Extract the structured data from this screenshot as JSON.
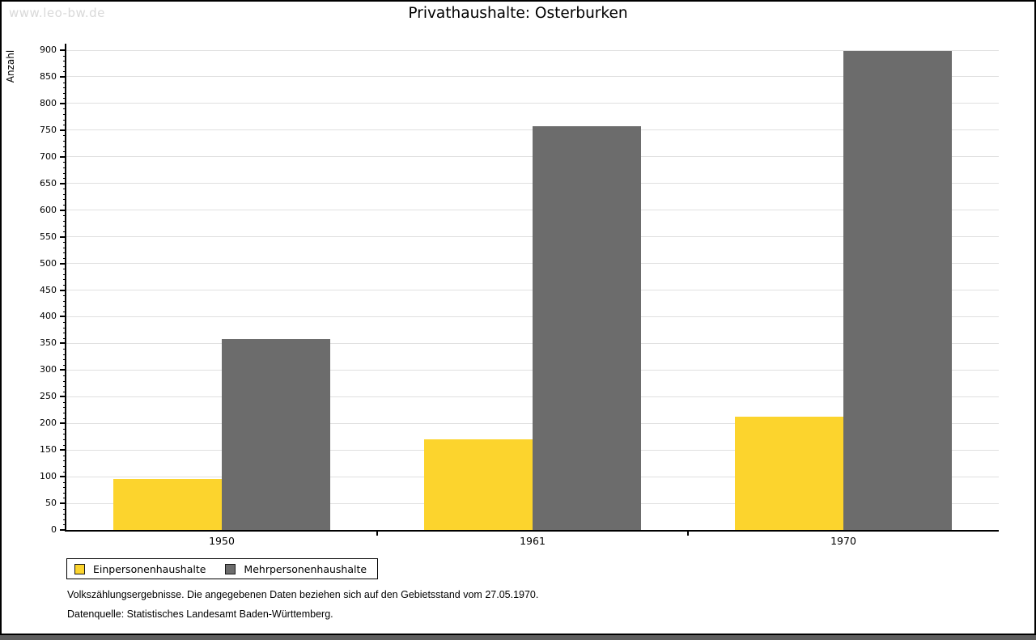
{
  "watermark": "www.leo-bw.de",
  "chart_data": {
    "type": "bar",
    "title": "Privathaushalte: Osterburken",
    "categories": [
      "1950",
      "1961",
      "1970"
    ],
    "series": [
      {
        "name": "Einpersonenhaushalte",
        "color": "#fcd42d",
        "values": [
          96,
          170,
          212
        ]
      },
      {
        "name": "Mehrpersonenhaushalte",
        "color": "#6c6c6c",
        "values": [
          358,
          757,
          898
        ]
      }
    ],
    "xlabel": "",
    "ylabel": "Anzahl",
    "ylim": [
      0,
      900
    ],
    "ytick_step": 50,
    "ytick_minor_step": 10,
    "grid": true,
    "legend_position": "bottom-left"
  },
  "footer": {
    "line1": "Volkszählungsergebnisse. Die angegebenen Daten beziehen sich auf den Gebietsstand vom 27.05.1970.",
    "line2": "Datenquelle: Statistisches Landesamt Baden-Württemberg."
  },
  "colors": {
    "bar_yellow": "#fcd42d",
    "bar_gray": "#6c6c6c",
    "grid": "#e0e0e0",
    "axis": "#000000",
    "watermark": "#d9d9d9",
    "bottom_bar": "#5e5e5e"
  }
}
